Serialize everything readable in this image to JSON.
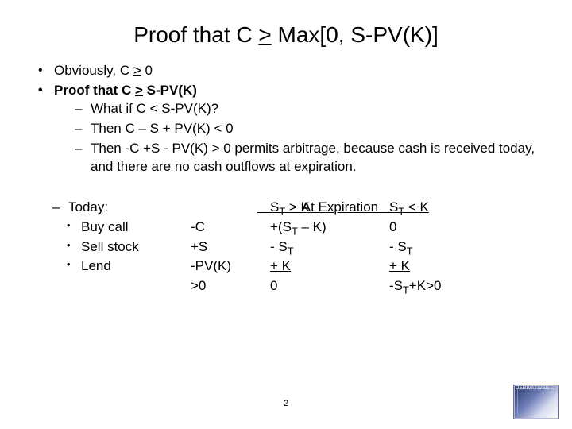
{
  "title_pre": "Proof that C ",
  "title_sym": ">",
  "title_post": " Max[0, S-PV(K)]",
  "bullets": {
    "b1_pre": "Obviously, C ",
    "b1_sym": ">",
    "b1_post": " 0",
    "b2_pre": "Proof that C ",
    "b2_sym": ">",
    "b2_post": " S-PV(K)",
    "s1": "What if C < S-PV(K)?",
    "s2": "Then C – S + PV(K) < 0",
    "s3": "Then  -C +S - PV(K) > 0 permits arbitrage, because cash is received today, and there are no cash outflows at expiration."
  },
  "expiration": {
    "header": "            At Expiration           ",
    "today_label": "Today:",
    "col_e1_head_pre": "S",
    "col_e1_head_sub": "T",
    "col_e1_head_post": " > K",
    "col_e2_head_pre": "S",
    "col_e2_head_sub": "T",
    "col_e2_head_post": " < K",
    "rows": [
      {
        "action": "Buy call",
        "today": "-C",
        "e1_pre": "+(S",
        "e1_sub": "T",
        "e1_post": " – K)",
        "e2": "   0"
      },
      {
        "action": "Sell stock",
        "today": "+S",
        "e1_pre": "- S",
        "e1_sub": "T",
        "e1_post": "",
        "e2": " - S",
        "e2_sub": "T",
        "e2_post": ""
      },
      {
        "action": "Lend",
        "today": "-PV(K)",
        "e1": "+ K  ",
        "e1_under": true,
        "e2": " + K  ",
        "e2_under": true
      },
      {
        "action": "",
        "today": ">0",
        "e1": "   0",
        "e2": "-S",
        "e2_sub": "T",
        "e2_post": "+K>0"
      }
    ]
  },
  "pagenum": "2",
  "corner": "DERIVATIVES"
}
